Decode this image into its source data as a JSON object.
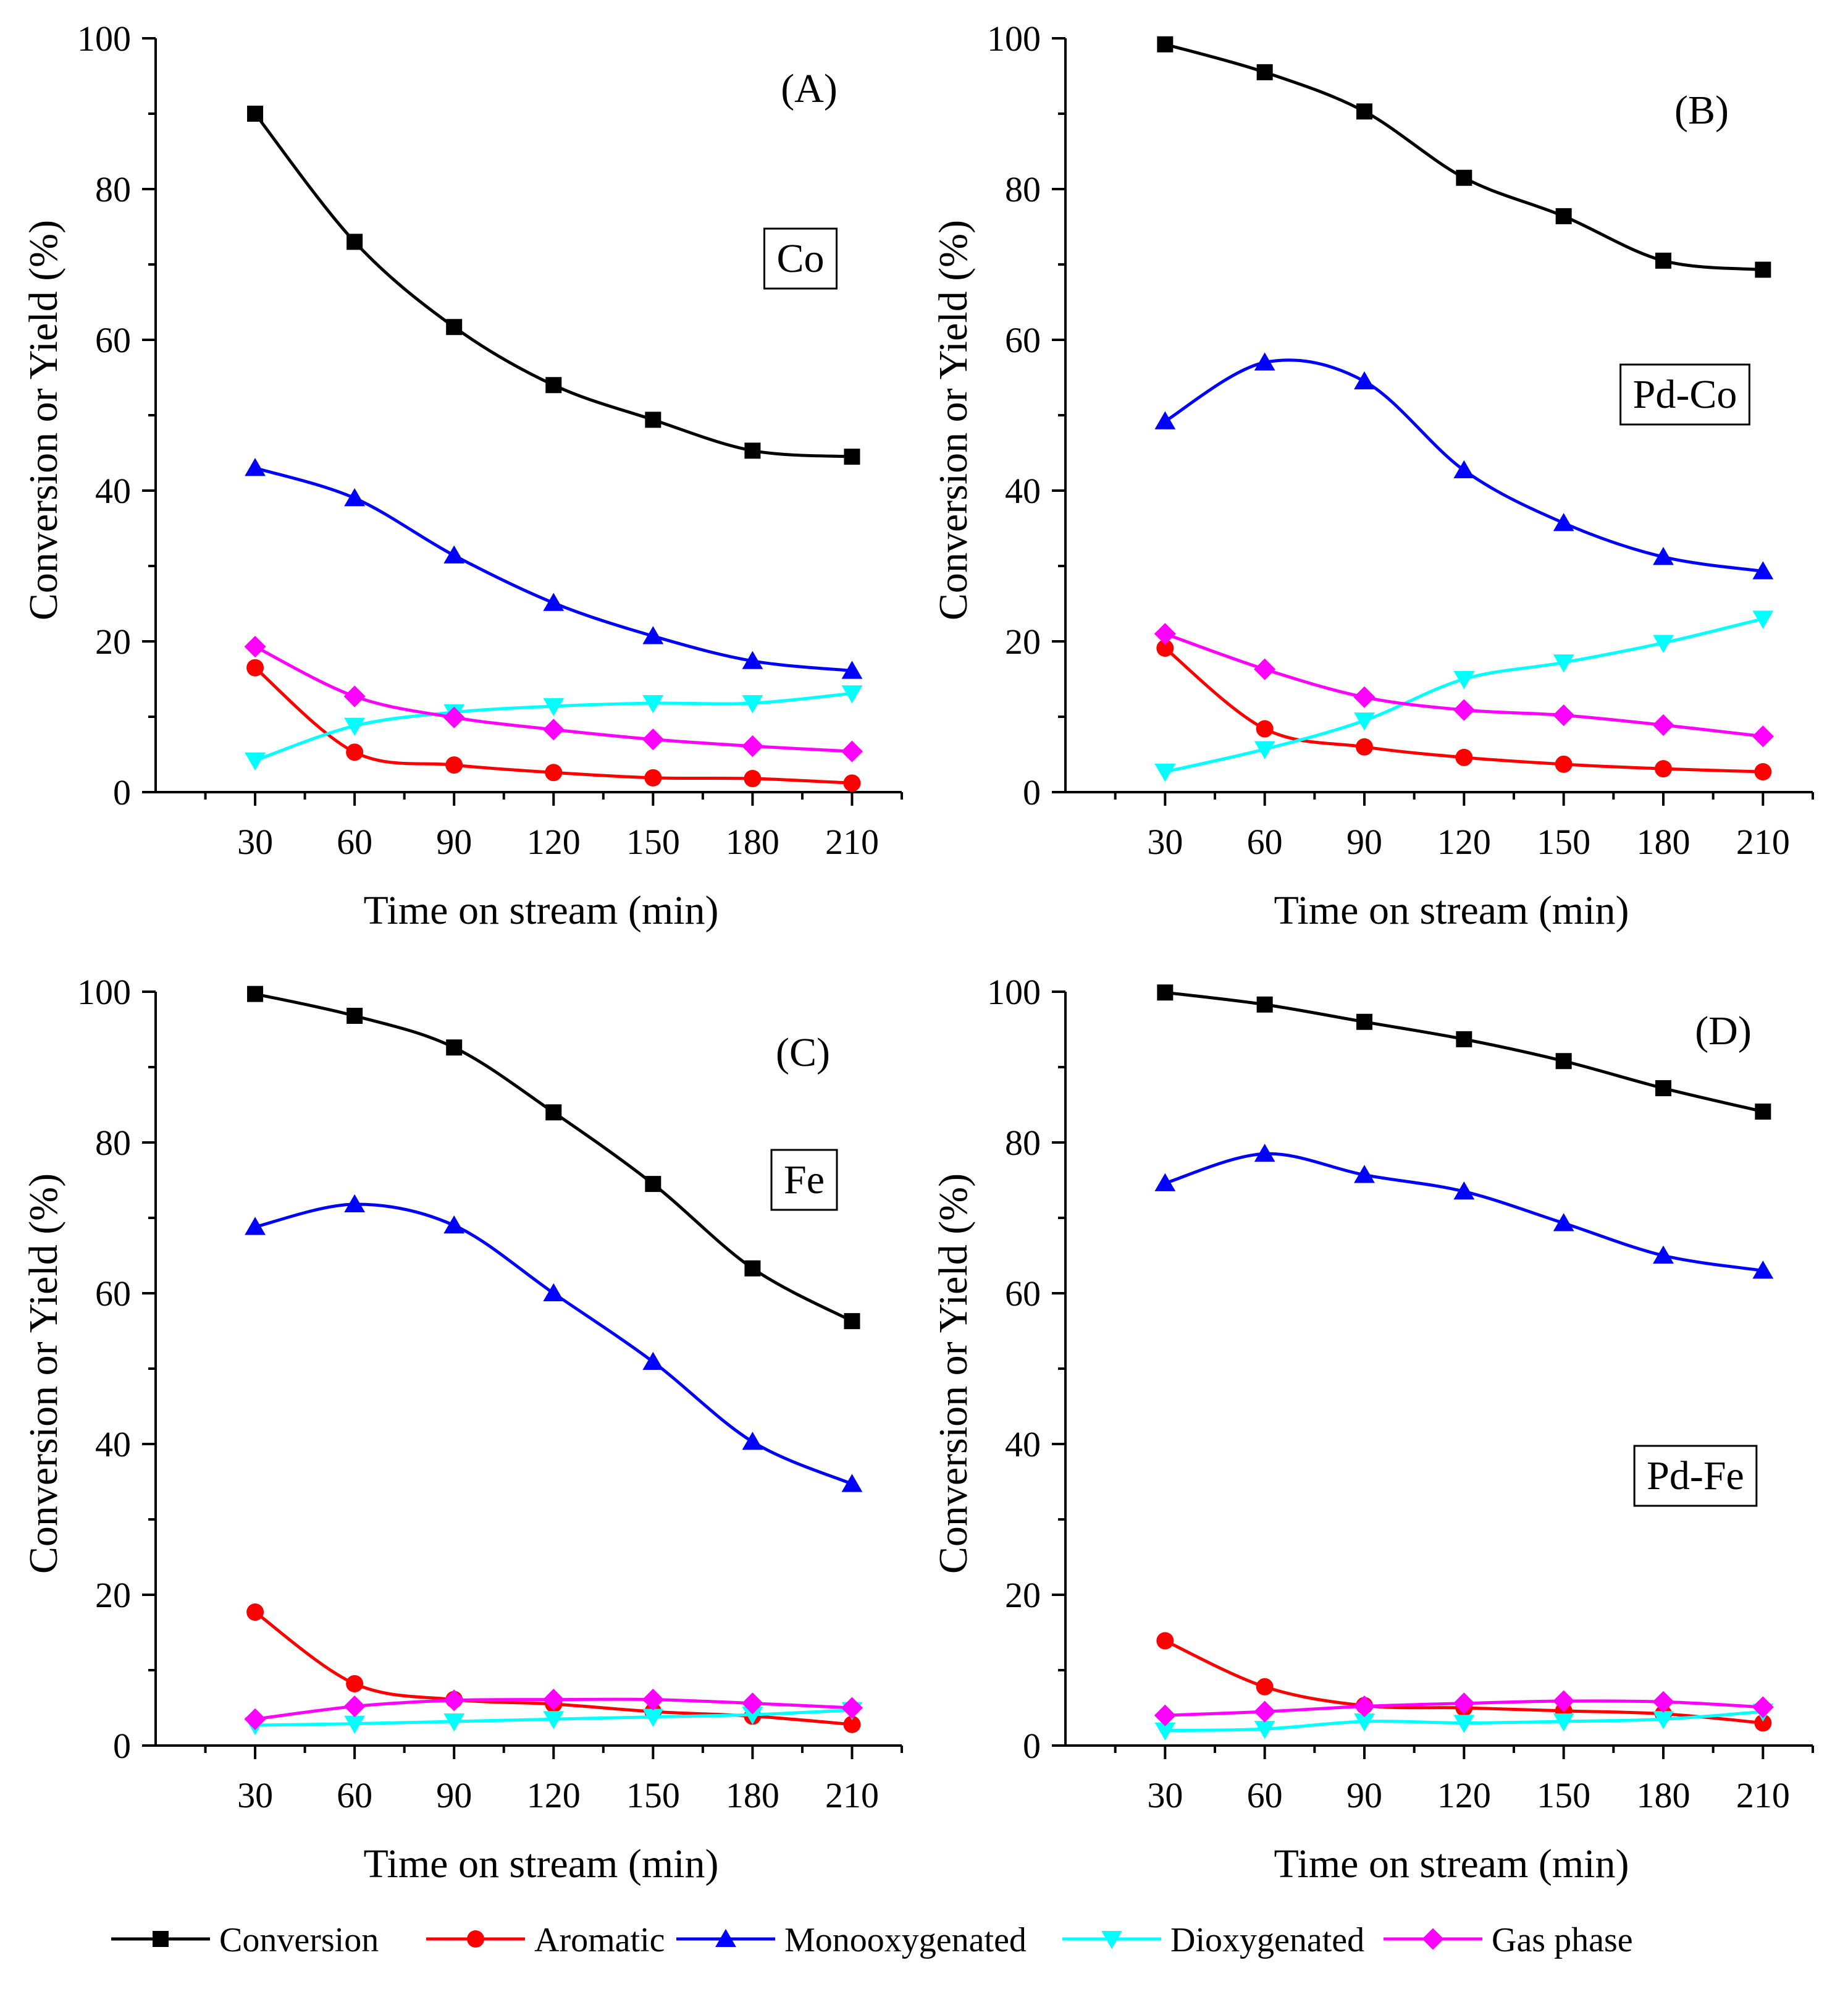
{
  "figure": {
    "legend": [
      {
        "name": "Conversion",
        "color": "#000000",
        "marker": "square"
      },
      {
        "name": "Aromatic",
        "color": "#ff0000",
        "marker": "circle"
      },
      {
        "name": "Monooxygenated",
        "color": "#0000ff",
        "marker": "triangle-up"
      },
      {
        "name": "Dioxygenated",
        "color": "#00ffff",
        "marker": "triangle-down"
      },
      {
        "name": "Gas phase",
        "color": "#ff00ff",
        "marker": "diamond"
      }
    ]
  },
  "chart_data": [
    {
      "type": "line",
      "panel": "(A)",
      "label": "Co",
      "xlabel": "Time on stream (min)",
      "ylabel": "Conversion or Yield (%)",
      "x": [
        30,
        60,
        90,
        120,
        150,
        180,
        210
      ],
      "xlim": [
        0,
        225
      ],
      "ylim": [
        0,
        100
      ],
      "xticks": [
        30,
        60,
        90,
        120,
        150,
        180,
        210
      ],
      "yticks": [
        0,
        20,
        40,
        60,
        80,
        100
      ],
      "series": [
        {
          "name": "Conversion",
          "values": [
            90,
            73,
            61.7,
            54,
            49.4,
            45.3,
            44.5
          ]
        },
        {
          "name": "Aromatic",
          "values": [
            16.5,
            5.3,
            3.6,
            2.6,
            1.9,
            1.8,
            1.2
          ]
        },
        {
          "name": "Monooxygenated",
          "values": [
            43,
            39,
            31.4,
            25.1,
            20.7,
            17.4,
            16.1
          ]
        },
        {
          "name": "Dioxygenated",
          "values": [
            4.2,
            8.8,
            10.6,
            11.4,
            11.8,
            11.8,
            13.1
          ]
        },
        {
          "name": "Gas phase",
          "values": [
            19.3,
            12.7,
            9.9,
            8.3,
            7,
            6.1,
            5.4
          ]
        }
      ]
    },
    {
      "type": "line",
      "panel": "(B)",
      "label": "Pd-Co",
      "xlabel": "Time on stream (min)",
      "ylabel": "Conversion or Yield (%)",
      "x": [
        30,
        60,
        90,
        120,
        150,
        180,
        210
      ],
      "xlim": [
        0,
        225
      ],
      "ylim": [
        0,
        100
      ],
      "xticks": [
        30,
        60,
        90,
        120,
        150,
        180,
        210
      ],
      "yticks": [
        0,
        20,
        40,
        60,
        80,
        100
      ],
      "series": [
        {
          "name": "Conversion",
          "values": [
            99.2,
            95.5,
            90.3,
            81.5,
            76.4,
            70.5,
            69.3
          ]
        },
        {
          "name": "Aromatic",
          "values": [
            19.1,
            8.4,
            6,
            4.6,
            3.7,
            3.1,
            2.7
          ]
        },
        {
          "name": "Monooxygenated",
          "values": [
            49.2,
            57,
            54.5,
            42.7,
            35.7,
            31.2,
            29.3
          ]
        },
        {
          "name": "Dioxygenated",
          "values": [
            2.7,
            5.7,
            9.5,
            15,
            17.2,
            19.8,
            23
          ]
        },
        {
          "name": "Gas phase",
          "values": [
            21,
            16.3,
            12.6,
            10.9,
            10.2,
            8.9,
            7.4
          ]
        }
      ]
    },
    {
      "type": "line",
      "panel": "(C)",
      "label": "Fe",
      "xlabel": "Time on stream (min)",
      "ylabel": "Conversion or Yield (%)",
      "x": [
        30,
        60,
        90,
        120,
        150,
        180,
        210
      ],
      "xlim": [
        0,
        225
      ],
      "ylim": [
        0,
        100
      ],
      "xticks": [
        30,
        60,
        90,
        120,
        150,
        180,
        210
      ],
      "yticks": [
        0,
        20,
        40,
        60,
        80,
        100
      ],
      "series": [
        {
          "name": "Conversion",
          "values": [
            99.7,
            96.8,
            92.6,
            84,
            74.5,
            63.3,
            56.3
          ]
        },
        {
          "name": "Aromatic",
          "values": [
            17.7,
            8.2,
            6.1,
            5.5,
            4.5,
            3.9,
            2.8
          ]
        },
        {
          "name": "Monooxygenated",
          "values": [
            68.8,
            71.8,
            69,
            60,
            50.9,
            40.3,
            34.7
          ]
        },
        {
          "name": "Dioxygenated",
          "values": [
            2.7,
            2.9,
            3.2,
            3.5,
            3.8,
            4.1,
            4.7
          ]
        },
        {
          "name": "Gas phase",
          "values": [
            3.5,
            5.2,
            6,
            6.1,
            6.1,
            5.6,
            5
          ]
        }
      ]
    },
    {
      "type": "line",
      "panel": "(D)",
      "label": "Pd-Fe",
      "xlabel": "Time on stream (min)",
      "ylabel": "Conversion or Yield (%)",
      "x": [
        30,
        60,
        90,
        120,
        150,
        180,
        210
      ],
      "xlim": [
        0,
        225
      ],
      "ylim": [
        0,
        100
      ],
      "xticks": [
        30,
        60,
        90,
        120,
        150,
        180,
        210
      ],
      "yticks": [
        0,
        20,
        40,
        60,
        80,
        100
      ],
      "series": [
        {
          "name": "Conversion",
          "values": [
            99.9,
            98.3,
            96,
            93.7,
            90.8,
            87.2,
            84.1
          ]
        },
        {
          "name": "Aromatic",
          "values": [
            13.9,
            7.8,
            5.3,
            5,
            4.6,
            4.2,
            3
          ]
        },
        {
          "name": "Monooxygenated",
          "values": [
            74.6,
            78.5,
            75.7,
            73.5,
            69.3,
            65,
            63
          ]
        },
        {
          "name": "Dioxygenated",
          "values": [
            2,
            2.2,
            3.2,
            3,
            3.2,
            3.5,
            4.5
          ]
        },
        {
          "name": "Gas phase",
          "values": [
            4,
            4.5,
            5.2,
            5.6,
            5.9,
            5.8,
            5.1
          ]
        }
      ]
    }
  ]
}
